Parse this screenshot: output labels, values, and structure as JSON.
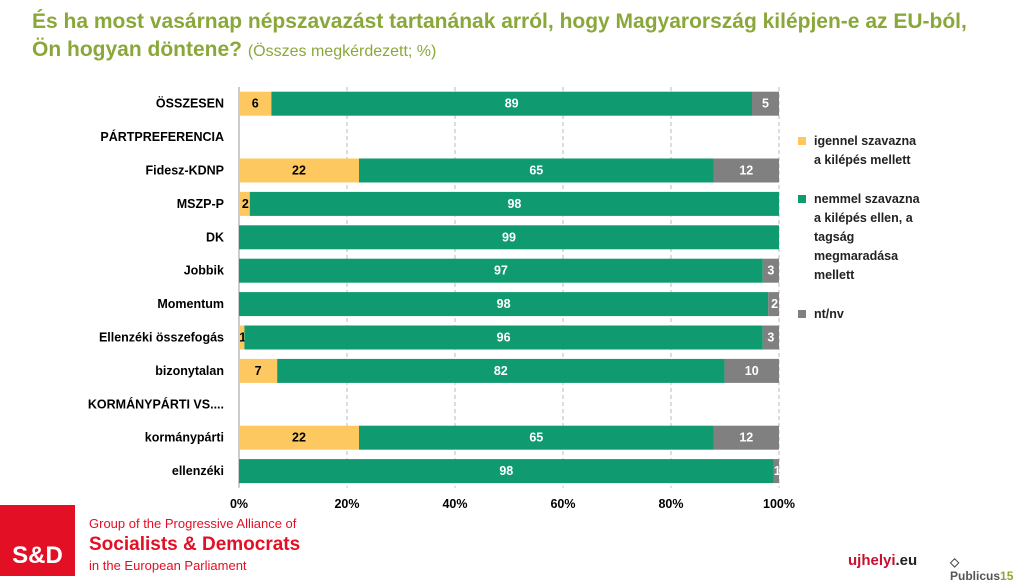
{
  "title": {
    "main": "És ha most vasárnap népszavazást tartanának arról, hogy Magyarország kilépjen-e az EU-ból, Ön hogyan döntene?",
    "sub": "(Összes megkérdezett; %)"
  },
  "chart_data": {
    "type": "bar",
    "stacked": true,
    "orientation": "horizontal",
    "categories": [
      "ÖSSZESEN",
      "PÁRTPREFERENCIA",
      "Fidesz-KDNP",
      "MSZP-P",
      "DK",
      "Jobbik",
      "Momentum",
      "Ellenzéki összefogás",
      "bizonytalan",
      "KORMÁNYPÁRTI VS....",
      "kormánypárti",
      "ellenzéki"
    ],
    "series": [
      {
        "name": "igennel szavazna a kilépés mellett",
        "color": "#fdc85f",
        "values": [
          6,
          null,
          22,
          2,
          0,
          0,
          0,
          1,
          7,
          null,
          22,
          0
        ]
      },
      {
        "name": "nemmel szavazna a kilépés ellen, a tagság megmaradása mellett",
        "color": "#109a70",
        "values": [
          89,
          null,
          65,
          98,
          99,
          97,
          98,
          96,
          82,
          null,
          65,
          98
        ]
      },
      {
        "name": "nt/nv",
        "color": "#808080",
        "values": [
          5,
          null,
          12,
          0,
          0,
          3,
          2,
          3,
          10,
          null,
          12,
          1
        ]
      }
    ],
    "xlim": [
      0,
      100
    ],
    "xticks": [
      "0%",
      "20%",
      "40%",
      "60%",
      "80%",
      "100%"
    ],
    "grid": "vertical dashed",
    "legend": "right"
  },
  "legend": {
    "items": [
      {
        "lines": [
          "igennel szavazna",
          "a kilépés mellett"
        ],
        "color": "#fdc85f"
      },
      {
        "lines": [
          "nemmel szavazna",
          "a kilépés ellen, a",
          "tagság",
          "megmaradása",
          "mellett"
        ],
        "color": "#109a70"
      },
      {
        "lines": [
          "nt/nv"
        ],
        "color": "#808080"
      }
    ]
  },
  "footer": {
    "logo": "S&D",
    "group_line1": "Group of the Progressive Alliance of",
    "group_line2": "Socialists & Democrats",
    "group_line3": "in the European Parliament",
    "ujhelyi": "ujhelyi",
    "ujhelyi_tld": ".eu",
    "publicus": "Publicus",
    "publicus_num": "15"
  }
}
